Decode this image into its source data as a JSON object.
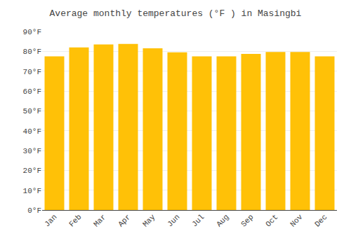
{
  "chart_data": {
    "type": "bar",
    "title": "Average monthly temperatures (°F ) in Masingbi",
    "categories": [
      "Jan",
      "Feb",
      "Mar",
      "Apr",
      "May",
      "Jun",
      "Jul",
      "Aug",
      "Sep",
      "Oct",
      "Nov",
      "Dec"
    ],
    "values": [
      77.5,
      82.0,
      83.5,
      83.7,
      81.5,
      79.5,
      77.5,
      77.5,
      78.7,
      79.7,
      79.7,
      77.5
    ],
    "color": "#FFC107",
    "ylim": [
      0,
      90
    ],
    "yticks": [
      {
        "value": 0,
        "label": "0°F"
      },
      {
        "value": 10,
        "label": "10°F"
      },
      {
        "value": 20,
        "label": "20°F"
      },
      {
        "value": 30,
        "label": "30°F"
      },
      {
        "value": 40,
        "label": "40°F"
      },
      {
        "value": 50,
        "label": "50°F"
      },
      {
        "value": 60,
        "label": "60°F"
      },
      {
        "value": 70,
        "label": "70°F"
      },
      {
        "value": 80,
        "label": "80°F"
      },
      {
        "value": 90,
        "label": "90°F"
      }
    ],
    "grid": true
  }
}
